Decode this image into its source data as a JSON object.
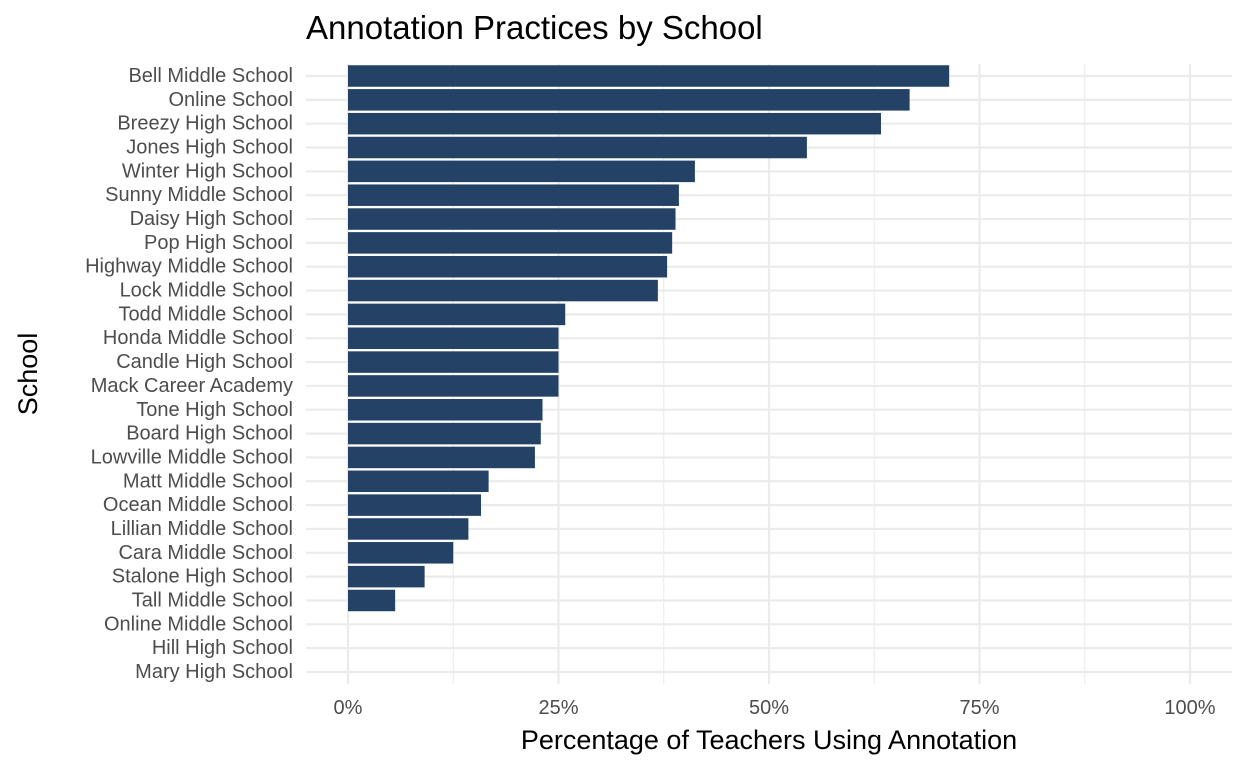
{
  "chart_data": {
    "type": "bar",
    "orientation": "horizontal",
    "title": "Annotation Practices by School",
    "xlabel": "Percentage of Teachers Using Annotation",
    "ylabel": "School",
    "xlim": [
      0,
      1
    ],
    "x_ticks": [
      0,
      0.25,
      0.5,
      0.75,
      1.0
    ],
    "x_tick_labels": [
      "0%",
      "25%",
      "50%",
      "75%",
      "100%"
    ],
    "grid": true,
    "legend": "none",
    "bar_color": "#234266",
    "categories": [
      "Bell Middle School",
      "Online School",
      "Breezy High School",
      "Jones High School",
      "Winter High School",
      "Sunny Middle School",
      "Daisy High School",
      "Pop High School",
      "Highway Middle School",
      "Lock Middle School",
      "Todd Middle School",
      "Honda Middle School",
      "Candle High School",
      "Mack Career Academy",
      "Tone High School",
      "Board High School",
      "Lowville Middle School",
      "Matt Middle School",
      "Ocean Middle School",
      "Lillian Middle School",
      "Cara Middle School",
      "Stalone High School",
      "Tall Middle School",
      "Online Middle School",
      "Hill High School",
      "Mary High School"
    ],
    "values": [
      0.714,
      0.667,
      0.633,
      0.545,
      0.412,
      0.393,
      0.389,
      0.385,
      0.379,
      0.368,
      0.258,
      0.25,
      0.25,
      0.25,
      0.231,
      0.229,
      0.222,
      0.167,
      0.158,
      0.143,
      0.125,
      0.091,
      0.056,
      0,
      0,
      0
    ]
  }
}
